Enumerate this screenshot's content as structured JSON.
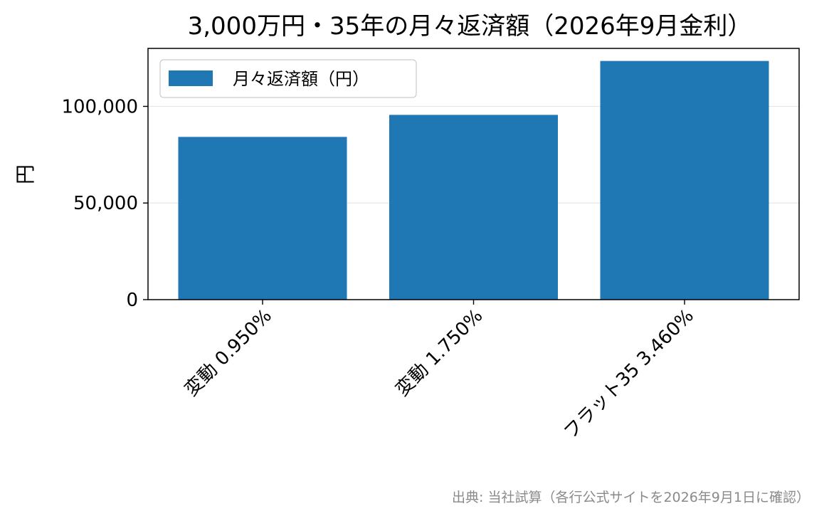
{
  "chart_data": {
    "type": "bar",
    "title": "3,000万円・35年の月々返済額（2026年9月金利）",
    "ylabel": "円",
    "xlabel": "",
    "categories": [
      "変動 0.950%",
      "変動 1.750%",
      "フラット35 3.460%"
    ],
    "series": [
      {
        "name": "月々返済額（円）",
        "values": [
          84200,
          95600,
          123500
        ]
      }
    ],
    "ylim": [
      0,
      130000
    ],
    "yticks": [
      0,
      50000,
      100000
    ],
    "ytick_labels": [
      "0",
      "50,000",
      "100,000"
    ],
    "grid": "horizontal",
    "legend_position": "top-left",
    "bar_color": "#1f77b4"
  },
  "footer": {
    "source": "出典: 当社試算（各行公式サイトを2026年9月1日に確認）"
  }
}
